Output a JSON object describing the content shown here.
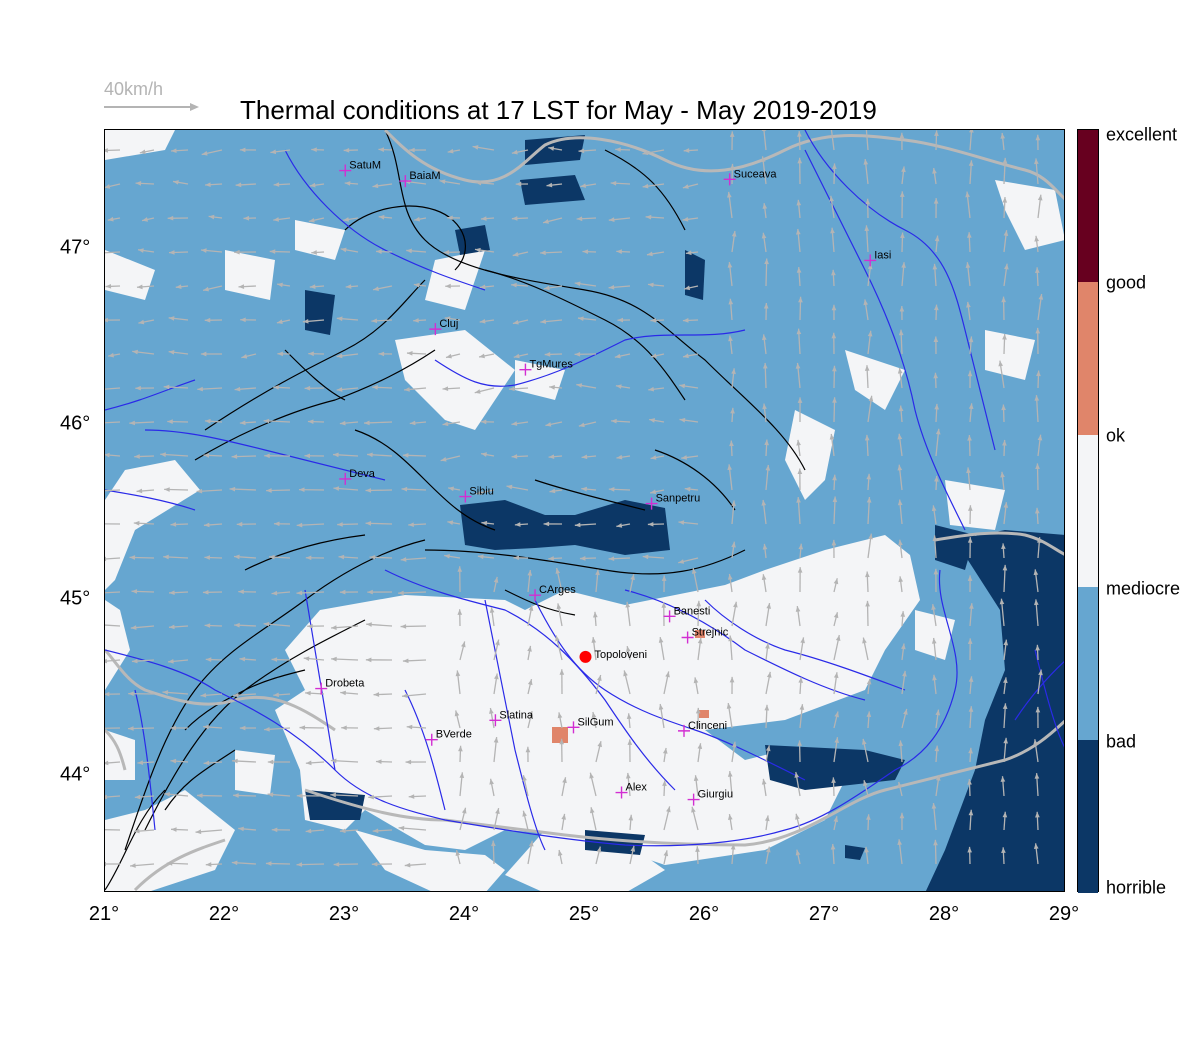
{
  "title": "Thermal conditions at 17 LST for May - May  2019-2019",
  "scale": {
    "label": "40km/h"
  },
  "axes": {
    "x_ticks": [
      "21°",
      "22°",
      "23°",
      "24°",
      "25°",
      "26°",
      "27°",
      "28°",
      "29°"
    ],
    "y_ticks": [
      "47°",
      "46°",
      "45°",
      "44°"
    ],
    "lon_range": [
      21,
      29
    ],
    "lat_range": [
      43.35,
      47.68
    ]
  },
  "legend": {
    "categories": [
      {
        "label": "excellent",
        "color": "#67001f"
      },
      {
        "label": "good",
        "color": "#67001f"
      },
      {
        "label": "ok",
        "color": "#e0856a"
      },
      {
        "label": "mediocre",
        "color": "#f4f5f7"
      },
      {
        "label": "bad",
        "color": "#66a6d0"
      },
      {
        "label": "horrible",
        "color": "#0c3766"
      }
    ]
  },
  "colors": {
    "bad": "#66a6d0",
    "mediocre": "#f4f5f7",
    "ok": "#e0856a",
    "horrible": "#0c3766",
    "river": "#2a2ae8",
    "border": "#b8b8b8",
    "wind_arrow": "#b4b4b4",
    "city_marker": "#d22ed2",
    "target_marker": "#ff0000"
  },
  "cities": [
    {
      "name": "SatuM",
      "lon": 23.0,
      "lat": 47.45
    },
    {
      "name": "BaiaM",
      "lon": 23.5,
      "lat": 47.39
    },
    {
      "name": "Suceava",
      "lon": 26.2,
      "lat": 47.4
    },
    {
      "name": "Iasi",
      "lon": 27.37,
      "lat": 46.94
    },
    {
      "name": "Cluj",
      "lon": 23.75,
      "lat": 46.55
    },
    {
      "name": "TgMures",
      "lon": 24.5,
      "lat": 46.32
    },
    {
      "name": "Deva",
      "lon": 23.0,
      "lat": 45.7
    },
    {
      "name": "Sibiu",
      "lon": 24.0,
      "lat": 45.6
    },
    {
      "name": "Sanpetru",
      "lon": 25.55,
      "lat": 45.56
    },
    {
      "name": "CArges",
      "lon": 24.58,
      "lat": 45.04
    },
    {
      "name": "Banesti",
      "lon": 25.7,
      "lat": 44.92
    },
    {
      "name": "Strejnic",
      "lon": 25.85,
      "lat": 44.8
    },
    {
      "name": "Drobeta",
      "lon": 22.8,
      "lat": 44.51
    },
    {
      "name": "Slatina",
      "lon": 24.25,
      "lat": 44.33
    },
    {
      "name": "SilGum",
      "lon": 24.9,
      "lat": 44.29
    },
    {
      "name": "Clinceni",
      "lon": 25.82,
      "lat": 44.27
    },
    {
      "name": "BVerde",
      "lon": 23.72,
      "lat": 44.22
    },
    {
      "name": "Alex",
      "lon": 25.3,
      "lat": 43.92
    },
    {
      "name": "Giurgiu",
      "lon": 25.9,
      "lat": 43.88
    }
  ],
  "target": {
    "name": "Topoloveni",
    "lon": 25.0,
    "lat": 44.69
  }
}
